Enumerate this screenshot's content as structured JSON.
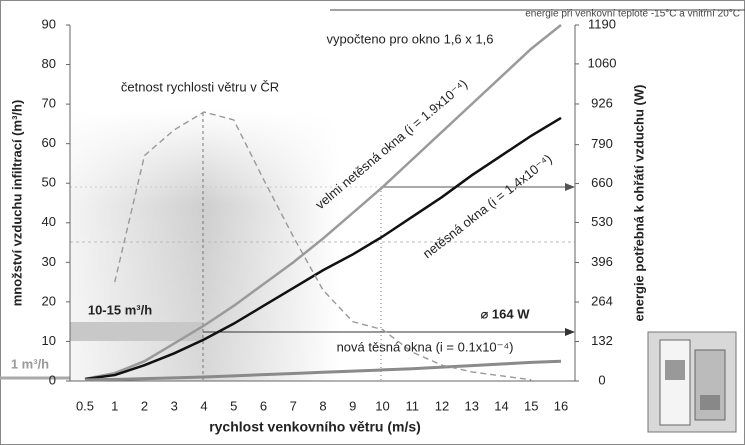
{
  "chart_data": {
    "type": "line",
    "xlabel": "rychlost venkovního větru (m/s)",
    "ylabel": "množství vzduchu infiltrací (m³/h)",
    "y2label": "energie potřebná k ohřátí vzduchu (W)",
    "annotations": [
      "energie při venkovní teplotě -15°C a vnitřní 20°C",
      "vypočteno pro okno 1,6 x 1,6",
      "10-15 m³/h",
      "⌀ 164 W",
      "1 m³/h"
    ],
    "categories": [
      "0.5",
      "1",
      "2",
      "3",
      "4",
      "5",
      "6",
      "7",
      "8",
      "9",
      "10",
      "11",
      "12",
      "13",
      "14",
      "15",
      "16"
    ],
    "ylim": [
      0,
      90
    ],
    "yticks": [
      0,
      10,
      20,
      30,
      40,
      50,
      60,
      70,
      80,
      90
    ],
    "y2lim": [
      0,
      1190
    ],
    "y2ticks": [
      0,
      132,
      264,
      396,
      530,
      660,
      790,
      926,
      1060,
      1190
    ],
    "series": [
      {
        "name": "velmi netěsná okna (i = 1.9x10⁻⁴)",
        "color": "#9a9a9a",
        "values": [
          0.5,
          2,
          5,
          9.5,
          14,
          19,
          24.5,
          30,
          36,
          42.5,
          49,
          56,
          63,
          70,
          77,
          84,
          90
        ]
      },
      {
        "name": "netěsná okna (i = 1.4x10⁻⁴)",
        "color": "#111111",
        "values": [
          0.5,
          1.5,
          4,
          7,
          10.5,
          14.5,
          19,
          23.5,
          28,
          32,
          36.5,
          41.5,
          46.5,
          52,
          57,
          62,
          66.5
        ]
      },
      {
        "name": "nová těsná okna (i = 0.1x10⁻⁴)",
        "color": "#8a8a8a",
        "values": [
          0.3,
          0.4,
          0.6,
          0.8,
          1,
          1.3,
          1.6,
          1.9,
          2.2,
          2.5,
          2.8,
          3.1,
          3.5,
          3.9,
          4.3,
          4.7,
          5
        ]
      },
      {
        "name": "četnost rychlosti větru v ČR",
        "color": "#999999",
        "dashed": true,
        "values": [
          null,
          25,
          57,
          63.5,
          68,
          66,
          51,
          36.5,
          23,
          15,
          13,
          7.3,
          4,
          2.3,
          1.3,
          0.3,
          null
        ]
      }
    ]
  }
}
